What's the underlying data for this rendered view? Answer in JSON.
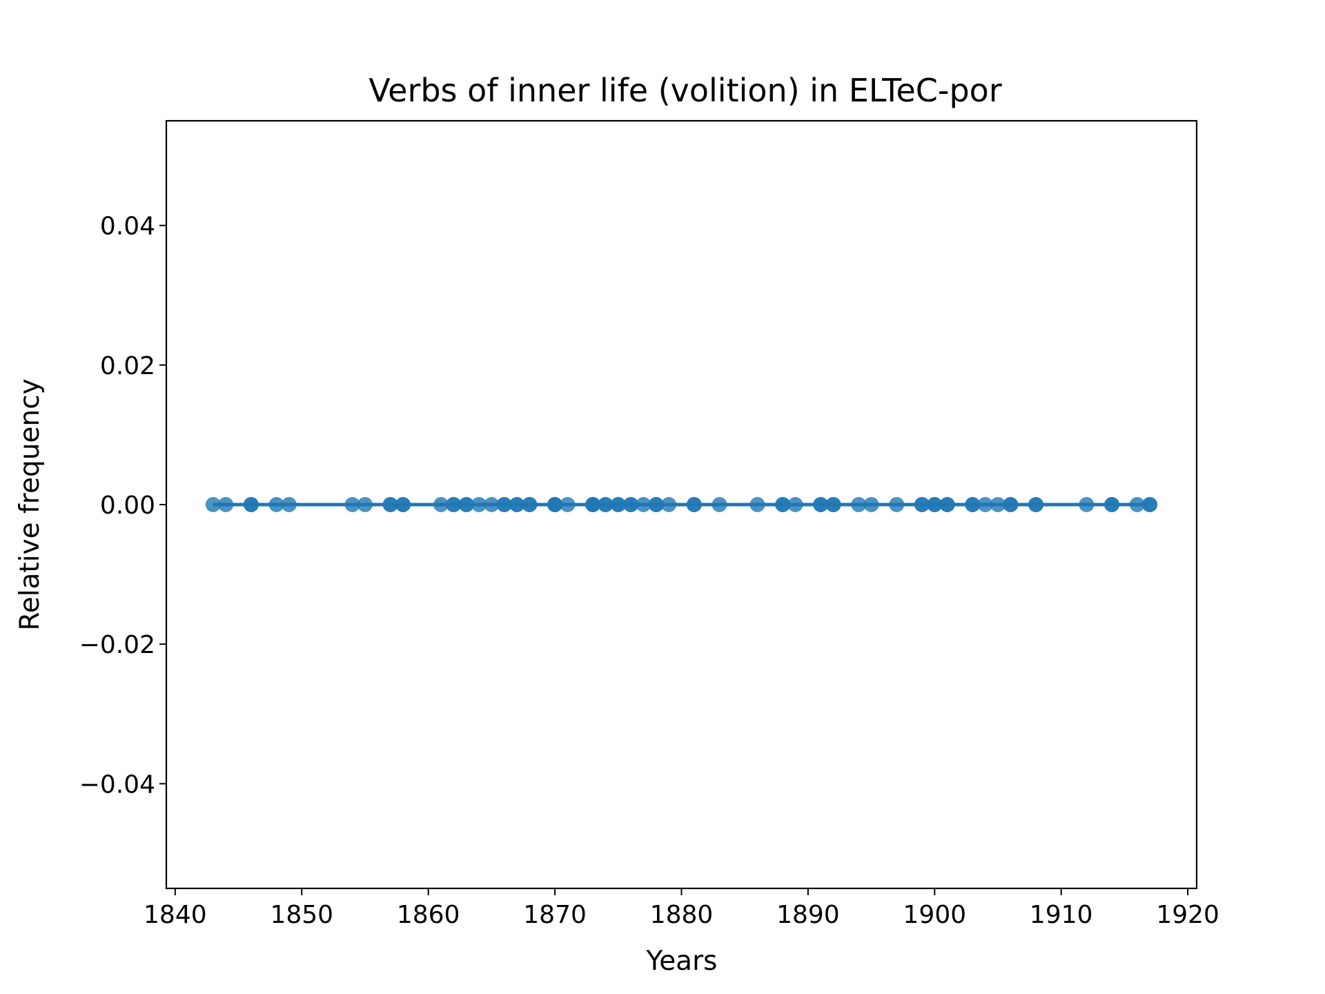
{
  "chart_data": {
    "type": "scatter",
    "title": "Verbs of inner life (volition) in ELTeC-por",
    "xlabel": "Years",
    "ylabel": "Relative frequency",
    "xlim": [
      1839.3,
      1920.7
    ],
    "ylim": [
      -0.055,
      0.055
    ],
    "x_ticks": [
      1840,
      1850,
      1860,
      1870,
      1880,
      1890,
      1900,
      1910,
      1920
    ],
    "y_ticks": [
      -0.04,
      -0.02,
      0.0,
      0.02,
      0.04
    ],
    "x_tick_labels": [
      "1840",
      "1850",
      "1860",
      "1870",
      "1880",
      "1890",
      "1900",
      "1910",
      "1920"
    ],
    "y_tick_labels": [
      "−0.04",
      "−0.02",
      "0.00",
      "0.02",
      "0.04"
    ],
    "grid": false,
    "series": [
      {
        "color": "#1f77b4",
        "marker": "circle",
        "x": [
          1843,
          1844,
          1846,
          1846,
          1848,
          1849,
          1854,
          1855,
          1857,
          1857,
          1858,
          1858,
          1861,
          1862,
          1862,
          1863,
          1863,
          1864,
          1865,
          1866,
          1866,
          1867,
          1867,
          1868,
          1868,
          1870,
          1870,
          1870,
          1871,
          1873,
          1873,
          1873,
          1874,
          1874,
          1875,
          1875,
          1876,
          1876,
          1877,
          1878,
          1878,
          1879,
          1881,
          1881,
          1883,
          1886,
          1888,
          1888,
          1889,
          1891,
          1891,
          1892,
          1892,
          1894,
          1895,
          1897,
          1899,
          1899,
          1900,
          1900,
          1901,
          1901,
          1903,
          1903,
          1904,
          1905,
          1906,
          1906,
          1908,
          1908,
          1912,
          1914,
          1914,
          1916,
          1917,
          1917
        ],
        "y": [
          0,
          0,
          0,
          0,
          0,
          0,
          0,
          0,
          0,
          0,
          0,
          0,
          0,
          0,
          0,
          0,
          0,
          0,
          0,
          0,
          0,
          0,
          0,
          0,
          0,
          0,
          0,
          0,
          0,
          0,
          0,
          0,
          0,
          0,
          0,
          0,
          0,
          0,
          0,
          0,
          0,
          0,
          0,
          0,
          0,
          0,
          0,
          0,
          0,
          0,
          0,
          0,
          0,
          0,
          0,
          0,
          0,
          0,
          0,
          0,
          0,
          0,
          0,
          0,
          0,
          0,
          0,
          0,
          0,
          0,
          0,
          0,
          0,
          0,
          0,
          0
        ]
      }
    ],
    "trend_line": {
      "color": "#1f77b4",
      "x": [
        1843,
        1917
      ],
      "y": [
        0,
        0
      ]
    }
  }
}
